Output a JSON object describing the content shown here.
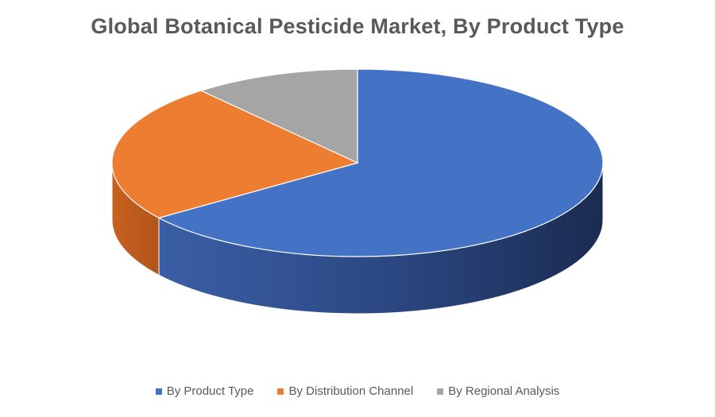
{
  "chart_data": {
    "type": "pie",
    "title": "Global Botanical Pesticide Market, By Product Type",
    "style": "3d-exploded-none",
    "legend_position": "bottom",
    "slices": [
      {
        "label": "By Product Type",
        "value": 65,
        "color": "#4472C4"
      },
      {
        "label": "By Distribution Channel",
        "value": 24,
        "color": "#ED7D31"
      },
      {
        "label": "By Regional Analysis",
        "value": 11,
        "color": "#A5A5A5"
      }
    ]
  }
}
